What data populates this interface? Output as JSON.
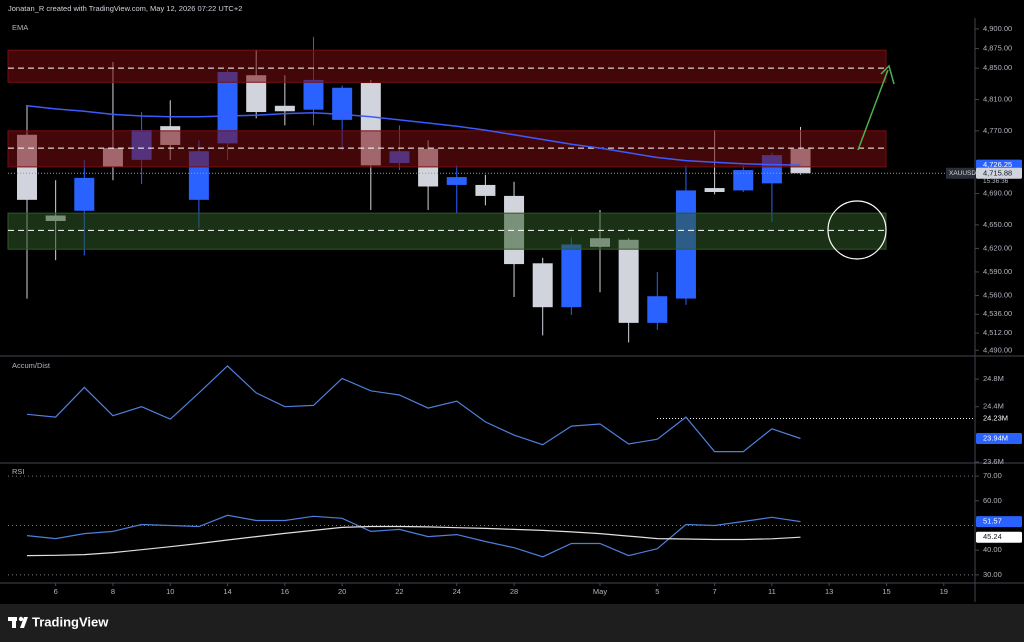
{
  "header": {
    "text": "Jonatan_R created with TradingView.com, May 12, 2026 07:22 UTC+2"
  },
  "chart_data": [
    {
      "type": "candlestick",
      "symbol": "XAUUSD",
      "categories": [
        null,
        "6",
        null,
        "8",
        null,
        "10",
        null,
        "14",
        null,
        "16",
        null,
        "20",
        null,
        "22",
        null,
        "24",
        null,
        "28",
        null,
        null,
        "May",
        null,
        "5",
        null,
        "7",
        null,
        "11",
        null,
        "13",
        null,
        "15",
        null,
        "19"
      ],
      "open": [
        4765,
        4662,
        4668,
        4748,
        4733,
        4776,
        4682,
        4754,
        4841,
        4802,
        4797,
        4784,
        4831,
        4729,
        4747,
        4701,
        4701,
        4687,
        4601,
        4545,
        4633,
        4631,
        4525,
        4556,
        4697,
        4694,
        4703,
        4747,
        null,
        null,
        null,
        null,
        null
      ],
      "high": [
        4803,
        4707,
        4733,
        4858,
        4794,
        4809,
        4758,
        4848,
        4873,
        4841,
        4890,
        4828,
        4835,
        4777,
        4758,
        4726,
        4714,
        4705,
        4608,
        4634,
        4669,
        4633,
        4590,
        4726,
        4771,
        4726,
        4742,
        4775,
        null,
        null,
        null,
        null,
        null
      ],
      "low": [
        4556,
        4605,
        4611,
        4707,
        4702,
        4733,
        4646,
        4733,
        4786,
        4777,
        4777,
        4745,
        4669,
        4720,
        4669,
        4665,
        4675,
        4558,
        4509,
        4535,
        4564,
        4500,
        4516,
        4548,
        4689,
        4692,
        4654,
        4714,
        null,
        null,
        null,
        null,
        null
      ],
      "close": [
        4682,
        4655,
        4710,
        4724,
        4771,
        4752,
        4744,
        4845,
        4794,
        4795,
        4835,
        4825,
        4726,
        4744,
        4699,
        4711,
        4687,
        4600,
        4545,
        4625,
        4622,
        4525,
        4559,
        4694,
        4692,
        4720,
        4739,
        4715.88,
        null,
        null,
        null,
        null,
        null
      ],
      "up_color": "#2962ff",
      "down_color": "#d1d4dc",
      "series": [
        {
          "name": "EMA",
          "color": "#3d5afe",
          "values": [
            4802,
            4798,
            4795,
            4791,
            4789,
            4788,
            4788,
            4789,
            4790,
            4792,
            4793,
            4791,
            4788,
            4784,
            4780,
            4776,
            4771,
            4765,
            4759,
            4753,
            4748,
            4742,
            4736,
            4732,
            4730,
            4728,
            4727,
            4726.25,
            null,
            null,
            null,
            null,
            null
          ]
        }
      ],
      "zones": [
        {
          "top": 4873,
          "bottom": 4832,
          "mid": 4850,
          "color": "#7a0d10"
        },
        {
          "top": 4770,
          "bottom": 4724,
          "mid": 4748,
          "color": "#7a0d10"
        },
        {
          "top": 4665,
          "bottom": 4619,
          "mid": 4643,
          "color": "#2f5a26"
        }
      ],
      "ylim": [
        4484,
        4914
      ],
      "yticks": [
        {
          "value": 4900,
          "label": "4,900.00"
        },
        {
          "value": 4875,
          "label": "4,875.00"
        },
        {
          "value": 4850,
          "label": "4,850.00"
        },
        {
          "value": 4810,
          "label": "4,810.00"
        },
        {
          "value": 4770,
          "label": "4,770.00"
        },
        {
          "value": 4690,
          "label": "4,690.00"
        },
        {
          "value": 4650,
          "label": "4,650.00"
        },
        {
          "value": 4620,
          "label": "4,620.00"
        },
        {
          "value": 4590,
          "label": "4,590.00"
        },
        {
          "value": 4560,
          "label": "4,560.00"
        },
        {
          "value": 4536,
          "label": "4,536.00"
        },
        {
          "value": 4512,
          "label": "4,512.00"
        },
        {
          "value": 4490,
          "label": "4,490.00"
        }
      ],
      "last_labels": [
        {
          "value": 4726.25,
          "label": "4,726.25",
          "color": "#2962ff"
        },
        {
          "value": 4715.88,
          "label": "4,715.88",
          "color": "#d1d4dc"
        }
      ],
      "countdown": "15:36:36"
    },
    {
      "type": "line",
      "title": "Accum/Dist",
      "color": "#4f7fdc",
      "values": [
        24.29,
        24.25,
        24.68,
        24.27,
        24.4,
        24.22,
        24.6,
        24.99,
        24.6,
        24.4,
        24.42,
        24.81,
        24.63,
        24.57,
        24.38,
        24.48,
        24.18,
        23.99,
        23.85,
        24.12,
        24.15,
        23.86,
        23.93,
        24.25,
        23.75,
        23.75,
        24.08,
        23.94,
        null,
        null,
        null,
        null,
        null
      ],
      "ylim": [
        23.6,
        25.12
      ],
      "yticks": [
        {
          "value": 24.8,
          "label": "24.8M"
        },
        {
          "value": 24.4,
          "label": "24.4M"
        },
        {
          "value": 23.6,
          "label": "23.6M"
        }
      ],
      "reference_line": {
        "value": 24.23,
        "label": "24.23M"
      },
      "last_labels": [
        {
          "value": 23.94,
          "label": "23.94M",
          "color": "#2962ff"
        }
      ]
    },
    {
      "type": "line",
      "title": "RSI",
      "series": [
        {
          "color": "#4f7fdc",
          "values": [
            45.9,
            44.7,
            46.7,
            47.6,
            50.4,
            50.0,
            49.6,
            54.1,
            52.0,
            52.0,
            53.7,
            52.9,
            47.6,
            48.4,
            45.5,
            46.3,
            43.5,
            41.0,
            37.3,
            42.7,
            42.7,
            37.8,
            40.6,
            50.4,
            50.0,
            51.6,
            53.3,
            51.57,
            null,
            null,
            null,
            null,
            null
          ]
        },
        {
          "color": "#e0e0e0",
          "values": [
            37.8,
            37.9,
            38.2,
            39.0,
            40.2,
            41.4,
            42.7,
            44.1,
            45.5,
            46.8,
            48.0,
            49.2,
            49.6,
            49.6,
            49.4,
            49.1,
            48.8,
            48.4,
            48.0,
            47.4,
            46.7,
            45.7,
            44.7,
            44.5,
            44.3,
            44.3,
            44.6,
            45.24,
            null,
            null,
            null,
            null,
            null
          ]
        }
      ],
      "bands": [
        70,
        50,
        30
      ],
      "ylim": [
        27.1,
        74.9
      ],
      "yticks": [
        {
          "value": 70,
          "label": "70.00"
        },
        {
          "value": 60,
          "label": "60.00"
        },
        {
          "value": 40,
          "label": "40.00"
        },
        {
          "value": 30,
          "label": "30.00"
        }
      ],
      "last_labels": [
        {
          "value": 51.57,
          "color": "#2962ff"
        },
        {
          "value": 45.24,
          "color": "#ffffff"
        }
      ]
    }
  ],
  "footer": {
    "brand": "TradingView"
  }
}
